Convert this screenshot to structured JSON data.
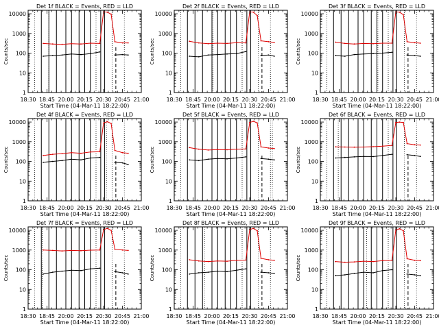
{
  "figure": {
    "colors": {
      "events": "#000000",
      "lld": "#dd0000",
      "frame": "#000000"
    },
    "xaxis": {
      "label": "Start Time (04-Mar-11 18:22:00)",
      "tick_labels": [
        "18:30",
        "18:45",
        "20:00",
        "20:15",
        "20:30",
        "20:45",
        "21:00"
      ],
      "minor_ticks_per_major": 3
    },
    "yaxis": {
      "label": "Counts/sec",
      "scale": "log",
      "ylim": [
        1,
        15000
      ],
      "tick_values": [
        1,
        10,
        100,
        1000,
        10000
      ],
      "tick_labels": [
        "1",
        "10",
        "100",
        "1000",
        "10000"
      ]
    },
    "overlay_lines": {
      "solid_x": [
        0.7,
        1.1,
        1.5,
        2.0,
        2.3,
        2.7,
        3.0,
        3.3,
        3.85,
        4.05
      ],
      "dotted_x": [
        0.35,
        3.6,
        4.45,
        5.1
      ],
      "dashed_x": 4.65,
      "extra_dotted_by_panel": [
        1.1,
        2.05,
        3.05,
        4.15,
        5.2,
        0.95,
        0.75,
        1.6,
        2.45
      ]
    }
  },
  "chart_data": [
    {
      "type": "line",
      "title": "Det 1f BLACK = Events, RED = LLD",
      "xlabel": "Start Time (04-Mar-11 18:22:00)",
      "ylabel": "Counts/sec",
      "x_tick_labels": [
        "18:30",
        "18:45",
        "20:00",
        "20:15",
        "20:30",
        "20:45",
        "21:00"
      ],
      "yscale": "log",
      "ylim": [
        1,
        15000
      ],
      "x": [
        0.8,
        1.3,
        1.8,
        2.3,
        2.8,
        3.3,
        3.8,
        4.0,
        4.2,
        4.4,
        4.6,
        5.0,
        5.3
      ],
      "series": [
        {
          "color": "#dd0000",
          "values": [
            310,
            290,
            280,
            300,
            290,
            320,
            310,
            12500,
            12000,
            9500,
            380,
            330,
            330
          ]
        },
        {
          "color": "#000000",
          "values": [
            70,
            75,
            80,
            90,
            85,
            95,
            115,
            null,
            null,
            null,
            80,
            85,
            80
          ]
        }
      ]
    },
    {
      "type": "line",
      "title": "Det 2f BLACK = Events, RED = LLD",
      "xlabel": "Start Time (04-Mar-11 18:22:00)",
      "ylabel": "Counts/sec",
      "x_tick_labels": [
        "18:30",
        "18:45",
        "20:00",
        "20:15",
        "20:30",
        "20:45",
        "21:00"
      ],
      "yscale": "log",
      "ylim": [
        1,
        15000
      ],
      "x": [
        0.8,
        1.3,
        1.8,
        2.3,
        2.8,
        3.3,
        3.8,
        4.0,
        4.2,
        4.4,
        4.6,
        5.0,
        5.3
      ],
      "series": [
        {
          "color": "#dd0000",
          "values": [
            400,
            330,
            300,
            320,
            310,
            340,
            330,
            12500,
            12000,
            8000,
            420,
            380,
            350
          ]
        },
        {
          "color": "#000000",
          "values": [
            70,
            65,
            80,
            85,
            90,
            95,
            120,
            null,
            null,
            null,
            75,
            80,
            70
          ]
        }
      ]
    },
    {
      "type": "line",
      "title": "Det 3f BLACK = Events, RED = LLD",
      "xlabel": "Start Time (04-Mar-11 18:22:00)",
      "ylabel": "Counts/sec",
      "x_tick_labels": [
        "18:30",
        "18:45",
        "20:00",
        "20:15",
        "20:30",
        "20:45",
        "21:00"
      ],
      "yscale": "log",
      "ylim": [
        1,
        15000
      ],
      "x": [
        0.8,
        1.3,
        1.8,
        2.3,
        2.8,
        3.3,
        3.8,
        4.0,
        4.2,
        4.4,
        4.6,
        5.0,
        5.3
      ],
      "series": [
        {
          "color": "#dd0000",
          "values": [
            360,
            310,
            290,
            310,
            300,
            320,
            320,
            12500,
            12000,
            9000,
            380,
            340,
            320
          ]
        },
        {
          "color": "#000000",
          "values": [
            75,
            70,
            85,
            90,
            95,
            100,
            110,
            null,
            null,
            null,
            80,
            75,
            70
          ]
        }
      ]
    },
    {
      "type": "line",
      "title": "Det 4f BLACK = Events, RED = LLD",
      "xlabel": "Start Time (04-Mar-11 18:22:00)",
      "ylabel": "Counts/sec",
      "x_tick_labels": [
        "18:30",
        "18:45",
        "20:00",
        "20:15",
        "20:30",
        "20:45",
        "21:00"
      ],
      "yscale": "log",
      "ylim": [
        1,
        15000
      ],
      "x": [
        0.8,
        1.3,
        1.8,
        2.3,
        2.8,
        3.3,
        3.8,
        4.0,
        4.2,
        4.4,
        4.6,
        5.0,
        5.3
      ],
      "series": [
        {
          "color": "#dd0000",
          "values": [
            200,
            230,
            250,
            280,
            260,
            300,
            310,
            9000,
            10500,
            8500,
            360,
            280,
            260
          ]
        },
        {
          "color": "#000000",
          "values": [
            90,
            100,
            110,
            130,
            120,
            150,
            160,
            null,
            null,
            null,
            90,
            85,
            70
          ]
        }
      ]
    },
    {
      "type": "line",
      "title": "Det 5f BLACK = Events, RED = LLD",
      "xlabel": "Start Time (04-Mar-11 18:22:00)",
      "ylabel": "Counts/sec",
      "x_tick_labels": [
        "18:30",
        "18:45",
        "20:00",
        "20:15",
        "20:30",
        "20:45",
        "21:00"
      ],
      "yscale": "log",
      "ylim": [
        1,
        15000
      ],
      "x": [
        0.8,
        1.3,
        1.8,
        2.3,
        2.8,
        3.3,
        3.8,
        4.0,
        4.2,
        4.4,
        4.6,
        5.0,
        5.3
      ],
      "series": [
        {
          "color": "#dd0000",
          "values": [
            500,
            420,
            380,
            400,
            390,
            420,
            430,
            9500,
            11000,
            9000,
            550,
            480,
            450
          ]
        },
        {
          "color": "#000000",
          "values": [
            120,
            110,
            130,
            140,
            135,
            150,
            170,
            null,
            null,
            null,
            140,
            130,
            120
          ]
        }
      ]
    },
    {
      "type": "line",
      "title": "Det 6f BLACK = Events, RED = LLD",
      "xlabel": "Start Time (04-Mar-11 18:22:00)",
      "ylabel": "Counts/sec",
      "x_tick_labels": [
        "18:30",
        "18:45",
        "20:00",
        "20:15",
        "20:30",
        "20:45",
        "21:00"
      ],
      "yscale": "log",
      "ylim": [
        1,
        15000
      ],
      "x": [
        0.8,
        1.3,
        1.8,
        2.3,
        2.8,
        3.3,
        3.8,
        4.0,
        4.2,
        4.4,
        4.6,
        5.0,
        5.3
      ],
      "series": [
        {
          "color": "#dd0000",
          "values": [
            550,
            540,
            530,
            540,
            560,
            600,
            650,
            9500,
            10000,
            9500,
            800,
            700,
            680
          ]
        },
        {
          "color": "#000000",
          "values": [
            150,
            160,
            170,
            180,
            175,
            200,
            230,
            null,
            null,
            null,
            220,
            200,
            180
          ]
        }
      ]
    },
    {
      "type": "line",
      "title": "Det 7f BLACK = Events, RED = LLD",
      "xlabel": "Start Time (04-Mar-11 18:22:00)",
      "ylabel": "Counts/sec",
      "x_tick_labels": [
        "18:30",
        "18:45",
        "20:00",
        "20:15",
        "20:30",
        "20:45",
        "21:00"
      ],
      "yscale": "log",
      "ylim": [
        1,
        15000
      ],
      "x": [
        0.8,
        1.3,
        1.8,
        2.3,
        2.8,
        3.3,
        3.8,
        4.0,
        4.2,
        4.4,
        4.6,
        5.0,
        5.3
      ],
      "series": [
        {
          "color": "#dd0000",
          "values": [
            1000,
            950,
            900,
            950,
            920,
            980,
            1000,
            11000,
            12500,
            10000,
            1100,
            1000,
            950
          ]
        },
        {
          "color": "#000000",
          "values": [
            60,
            75,
            85,
            95,
            90,
            110,
            120,
            null,
            null,
            null,
            80,
            70,
            60
          ]
        }
      ]
    },
    {
      "type": "line",
      "title": "Det 8f BLACK = Events, RED = LLD",
      "xlabel": "Start Time (04-Mar-11 18:22:00)",
      "ylabel": "Counts/sec",
      "x_tick_labels": [
        "18:30",
        "18:45",
        "20:00",
        "20:15",
        "20:30",
        "20:45",
        "21:00"
      ],
      "yscale": "log",
      "ylim": [
        1,
        15000
      ],
      "x": [
        0.8,
        1.3,
        1.8,
        2.3,
        2.8,
        3.3,
        3.8,
        4.0,
        4.2,
        4.4,
        4.6,
        5.0,
        5.3
      ],
      "series": [
        {
          "color": "#dd0000",
          "values": [
            320,
            280,
            260,
            280,
            270,
            300,
            310,
            11000,
            12500,
            9500,
            380,
            320,
            300
          ]
        },
        {
          "color": "#000000",
          "values": [
            60,
            70,
            75,
            85,
            80,
            95,
            110,
            null,
            null,
            null,
            75,
            70,
            65
          ]
        }
      ]
    },
    {
      "type": "line",
      "title": "Det 9f BLACK = Events, RED = LLD",
      "xlabel": "Start Time (04-Mar-11 18:22:00)",
      "ylabel": "Counts/sec",
      "x_tick_labels": [
        "18:30",
        "18:45",
        "20:00",
        "20:15",
        "20:30",
        "20:45",
        "21:00"
      ],
      "yscale": "log",
      "ylim": [
        1,
        15000
      ],
      "x": [
        0.8,
        1.3,
        1.8,
        2.3,
        2.8,
        3.3,
        3.8,
        4.0,
        4.2,
        4.4,
        4.6,
        5.0,
        5.3
      ],
      "series": [
        {
          "color": "#dd0000",
          "values": [
            260,
            240,
            250,
            270,
            260,
            290,
            300,
            10500,
            12000,
            9500,
            360,
            300,
            290
          ]
        },
        {
          "color": "#000000",
          "values": [
            50,
            55,
            65,
            75,
            70,
            90,
            100,
            null,
            null,
            null,
            60,
            55,
            50
          ]
        }
      ]
    }
  ]
}
